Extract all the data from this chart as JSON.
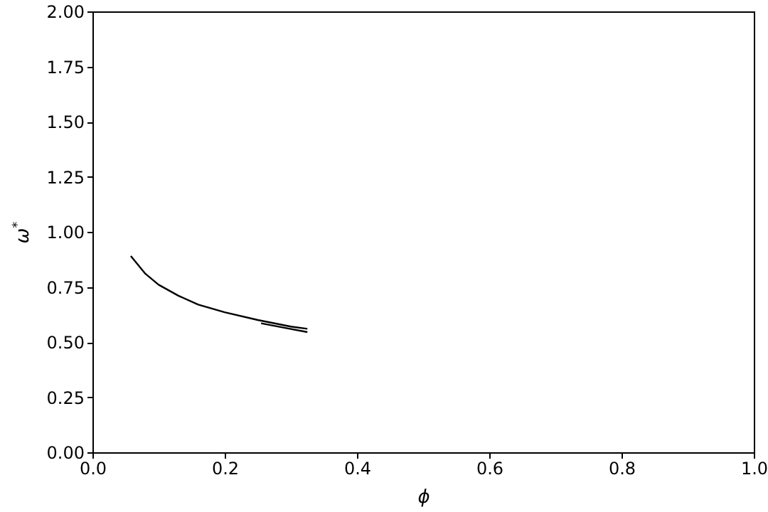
{
  "chart_data": {
    "type": "line",
    "xlabel": "ϕ",
    "ylabel": "ω$^{*}$",
    "xlim": [
      0,
      1
    ],
    "ylim": [
      0,
      2
    ],
    "xticks": [
      {
        "value": 0,
        "label": "0.0"
      },
      {
        "value": 0.2,
        "label": "0.2"
      },
      {
        "value": 0.4,
        "label": "0.4"
      },
      {
        "value": 0.6,
        "label": "0.6"
      },
      {
        "value": 0.8,
        "label": "0.8"
      },
      {
        "value": 1,
        "label": "1.0"
      }
    ],
    "yticks": [
      {
        "value": 0,
        "label": "0.00"
      },
      {
        "value": 0.25,
        "label": "0.25"
      },
      {
        "value": 0.5,
        "label": "0.50"
      },
      {
        "value": 0.75,
        "label": "0.75"
      },
      {
        "value": 1,
        "label": "1.00"
      },
      {
        "value": 1.25,
        "label": "1.25"
      },
      {
        "value": 1.5,
        "label": "1.50"
      },
      {
        "value": 1.75,
        "label": "1.75"
      },
      {
        "value": 2,
        "label": "2.00"
      }
    ],
    "grid": false,
    "line_style": "solid",
    "series": [
      {
        "color": "#000000",
        "x": [
          0.058,
          0.08,
          0.1,
          0.13,
          0.16,
          0.2,
          0.25,
          0.3,
          0.325
        ],
        "values": [
          0.89,
          0.81,
          0.76,
          0.71,
          0.67,
          0.635,
          0.6,
          0.57,
          0.56
        ]
      },
      {
        "color": "#000000",
        "x": [
          0.255,
          0.29,
          0.325
        ],
        "values": [
          0.585,
          0.565,
          0.545
        ]
      }
    ]
  }
}
